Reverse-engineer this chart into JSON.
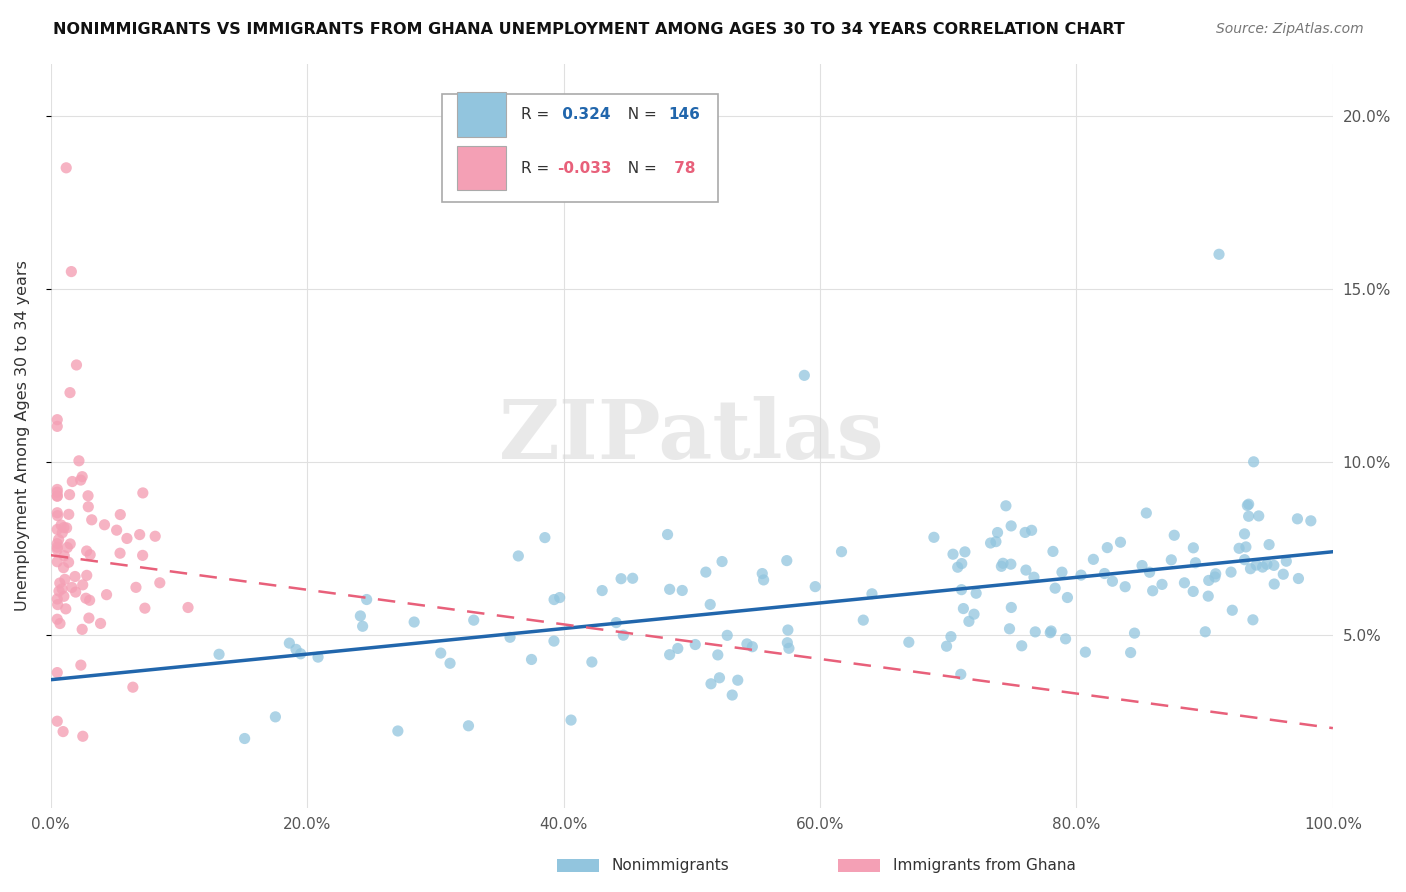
{
  "title": "NONIMMIGRANTS VS IMMIGRANTS FROM GHANA UNEMPLOYMENT AMONG AGES 30 TO 34 YEARS CORRELATION CHART",
  "source": "Source: ZipAtlas.com",
  "ylabel": "Unemployment Among Ages 30 to 34 years",
  "xlim": [
    0,
    1.0
  ],
  "ylim": [
    0,
    0.215
  ],
  "xtick_vals": [
    0.0,
    0.2,
    0.4,
    0.6,
    0.8,
    1.0
  ],
  "xtick_labels": [
    "0.0%",
    "20.0%",
    "40.0%",
    "60.0%",
    "80.0%",
    "100.0%"
  ],
  "ytick_vals": [
    0.05,
    0.1,
    0.15,
    0.2
  ],
  "ytick_labels": [
    "5.0%",
    "10.0%",
    "15.0%",
    "20.0%"
  ],
  "nonimmigrant_color": "#92c5de",
  "immigrant_color": "#f4a0b5",
  "trend_nonimmigrant_color": "#2166ac",
  "trend_immigrant_color": "#e8607a",
  "R_nonimmigrant": 0.324,
  "N_nonimmigrant": 146,
  "R_immigrant": -0.033,
  "N_immigrant": 78,
  "watermark": "ZIPatlas",
  "legend_nonimmigrant": "Nonimmigrants",
  "legend_immigrant": "Immigrants from Ghana",
  "background_color": "#ffffff",
  "trend_nonimm_x0": 0.0,
  "trend_nonimm_y0": 0.037,
  "trend_nonimm_x1": 1.0,
  "trend_nonimm_y1": 0.074,
  "trend_imm_x0": 0.0,
  "trend_imm_y0": 0.073,
  "trend_imm_x1": 1.0,
  "trend_imm_y1": 0.023
}
